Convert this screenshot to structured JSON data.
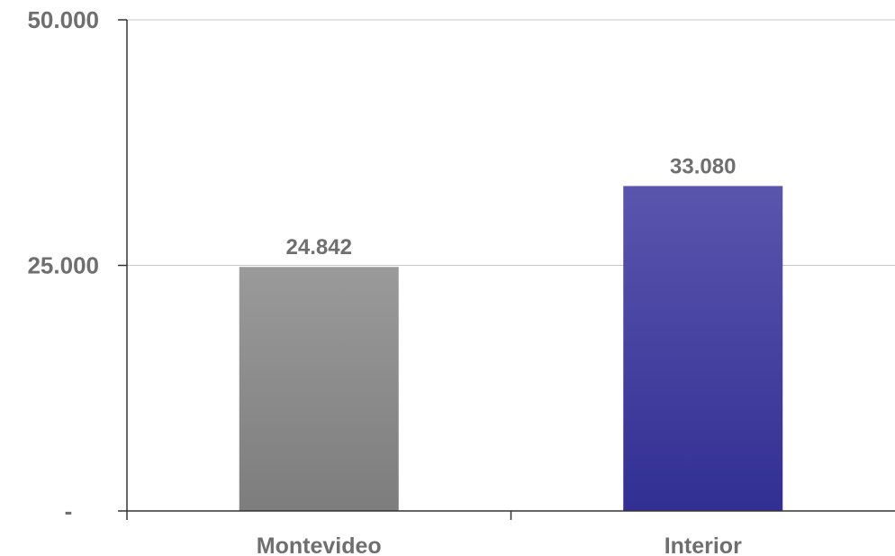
{
  "chart_data": {
    "type": "bar",
    "categories": [
      "Montevideo",
      "Interior"
    ],
    "values": [
      24842,
      33080
    ],
    "data_labels": [
      "24.842",
      "33.080"
    ],
    "ylim": [
      0,
      50000
    ],
    "yticks": [
      {
        "value": 0,
        "label": "-"
      },
      {
        "value": 25000,
        "label": "25.000"
      },
      {
        "value": 50000,
        "label": "50.000"
      }
    ],
    "grid": true,
    "legend": "none",
    "colors": {
      "Montevideo": {
        "top": "#9a9a9a",
        "bottom": "#7d7d7d"
      },
      "Interior": {
        "top": "#5a55ad",
        "bottom": "#322f94"
      },
      "axis": "#333333",
      "grid": "#c8c8c8",
      "text": "#6f6f6f"
    }
  }
}
